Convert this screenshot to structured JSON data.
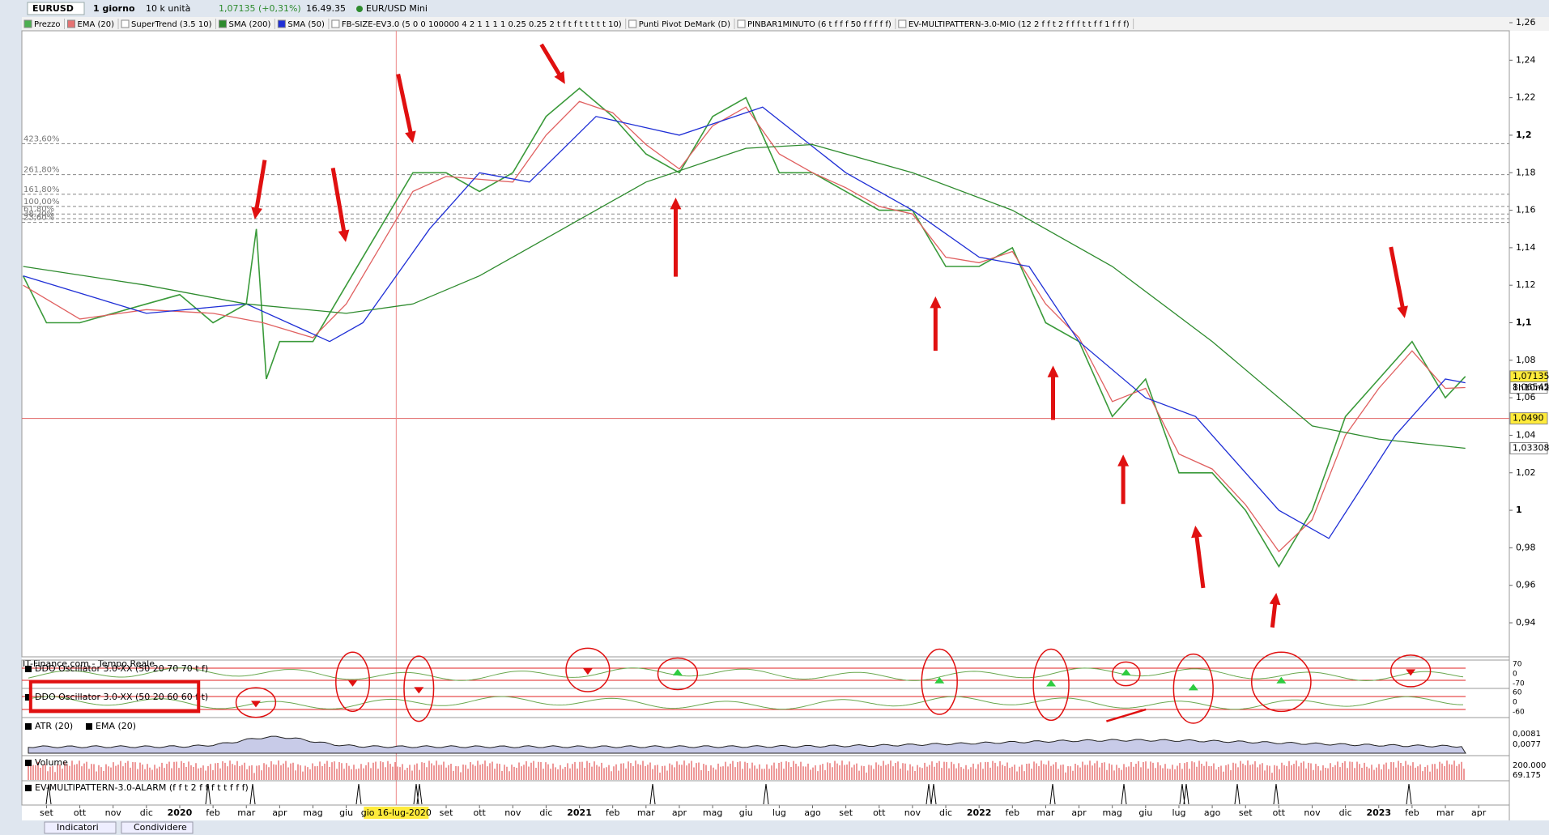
{
  "header": {
    "symbol": "EURUSD",
    "timeframe": "1 giorno",
    "units": "10 k unità",
    "quote": "1,07135 (+0,31%)",
    "time": "16.49.35",
    "instrument": "EUR/USD Mini"
  },
  "legend": [
    {
      "name": "Prezzo",
      "color": "#4caf50"
    },
    {
      "name": "EMA (20)",
      "color": "#e57373"
    },
    {
      "name": "SuperTrend (3.5 10)",
      "color": "#ffffff"
    },
    {
      "name": "SMA (200)",
      "color": "#2e8b2e"
    },
    {
      "name": "SMA (50)",
      "color": "#1f2fd6"
    },
    {
      "name": "FB-SIZE-EV3.0 (5 0 0 100000 4 2 1 1 1 1 0.25 0.25 2 t f t f t t t t t 10)",
      "color": "#ffffff"
    },
    {
      "name": "Punti Pivot DeMark (D)",
      "color": "#ffffff"
    },
    {
      "name": "PINBAR1MINUTO (6 t f f f 50 f f f f f)",
      "color": "#ffffff"
    },
    {
      "name": "EV-MULTIPATTERN-3.0-MIO (12 2 f f t 2 f f f t t f f 1 f f f)",
      "color": "#ffffff"
    }
  ],
  "chart_data": {
    "type": "line",
    "xlim": [
      -0.74,
      43.92
    ],
    "ylim": [
      0.92,
      1.26
    ],
    "yticks": [
      {
        "value": 0.94,
        "label": "0,94"
      },
      {
        "value": 0.96,
        "label": "0,96"
      },
      {
        "value": 0.98,
        "label": "0,98"
      },
      1,
      {
        "value": 1.02,
        "label": "1,02"
      },
      {
        "value": 1.04,
        "label": "1,04"
      },
      {
        "value": 1.06,
        "label": "1,06"
      },
      {
        "value": 1.08,
        "label": "1,08"
      },
      {
        "value": 1.1,
        "label": "1,1"
      },
      {
        "value": 1.12,
        "label": "1,12"
      },
      {
        "value": 1.14,
        "label": "1,14"
      },
      {
        "value": 1.16,
        "label": "1,16"
      },
      {
        "value": 1.18,
        "label": "1,18"
      },
      {
        "value": 1.2,
        "label": "1,2"
      },
      {
        "value": 1.22,
        "label": "1,22"
      },
      {
        "value": 1.24,
        "label": "1,24"
      },
      {
        "value": 1.26,
        "label": "1,26"
      }
    ],
    "xticks": [
      {
        "value": 0,
        "label": "set"
      },
      {
        "value": 1,
        "label": "ott"
      },
      {
        "value": 2,
        "label": "nov"
      },
      {
        "value": 3,
        "label": "dic"
      },
      {
        "value": 4,
        "label": "2020"
      },
      {
        "value": 5,
        "label": "feb"
      },
      {
        "value": 6,
        "label": "mar"
      },
      {
        "value": 7,
        "label": "apr"
      },
      {
        "value": 8,
        "label": "mag"
      },
      {
        "value": 9,
        "label": "giu"
      },
      {
        "value": 12,
        "label": "set"
      },
      {
        "value": 13,
        "label": "ott"
      },
      {
        "value": 14,
        "label": "nov"
      },
      {
        "value": 15,
        "label": "dic"
      },
      {
        "value": 16,
        "label": "2021"
      },
      {
        "value": 17,
        "label": "feb"
      },
      {
        "value": 18,
        "label": "mar"
      },
      {
        "value": 19,
        "label": "apr"
      },
      {
        "value": 20,
        "label": "mag"
      },
      {
        "value": 21,
        "label": "giu"
      },
      {
        "value": 22,
        "label": "lug"
      },
      {
        "value": 23,
        "label": "ago"
      },
      {
        "value": 24,
        "label": "set"
      },
      {
        "value": 25,
        "label": "ott"
      },
      {
        "value": 26,
        "label": "nov"
      },
      {
        "value": 27,
        "label": "dic"
      },
      {
        "value": 28,
        "label": "2022"
      },
      {
        "value": 29,
        "label": "feb"
      },
      {
        "value": 30,
        "label": "mar"
      },
      {
        "value": 31,
        "label": "apr"
      },
      {
        "value": 32,
        "label": "mag"
      },
      {
        "value": 33,
        "label": "giu"
      },
      {
        "value": 34,
        "label": "lug"
      },
      {
        "value": 35,
        "label": "ago"
      },
      {
        "value": 36,
        "label": "set"
      },
      {
        "value": 37,
        "label": "ott"
      },
      {
        "value": 38,
        "label": "nov"
      },
      {
        "value": 39,
        "label": "dic"
      },
      {
        "value": 40,
        "label": "2023"
      },
      {
        "value": 41,
        "label": "feb"
      },
      {
        "value": 42,
        "label": "mar"
      },
      {
        "value": 43,
        "label": "apr"
      }
    ],
    "series": [
      {
        "name": "Prezzo",
        "color": "#3a9a3a",
        "x": [
          -0.7,
          0,
          1,
          2,
          3,
          4,
          5,
          6,
          6.3,
          6.6,
          7,
          8,
          9,
          10,
          11,
          12,
          13,
          14,
          15,
          16,
          17,
          18,
          19,
          20,
          21,
          22,
          23,
          24,
          25,
          26,
          27,
          28,
          29,
          30,
          31,
          32,
          33,
          34,
          35,
          36,
          37,
          38,
          39,
          40,
          41,
          42,
          42.6
        ],
        "values": [
          1.125,
          1.1,
          1.1,
          1.105,
          1.11,
          1.115,
          1.1,
          1.11,
          1.15,
          1.07,
          1.09,
          1.09,
          1.12,
          1.15,
          1.18,
          1.18,
          1.17,
          1.18,
          1.21,
          1.225,
          1.21,
          1.19,
          1.18,
          1.21,
          1.22,
          1.18,
          1.18,
          1.17,
          1.16,
          1.16,
          1.13,
          1.13,
          1.14,
          1.1,
          1.09,
          1.05,
          1.07,
          1.02,
          1.02,
          1.0,
          0.97,
          1.0,
          1.05,
          1.07,
          1.09,
          1.06,
          1.07135
        ]
      },
      {
        "name": "EMA (20)",
        "color": "#e06060",
        "x": [
          -0.7,
          1,
          3,
          5,
          6.5,
          8,
          9,
          10,
          11,
          12,
          14,
          15,
          16,
          17,
          18,
          19,
          20,
          21,
          22,
          23,
          24,
          25,
          26,
          27,
          28,
          29,
          30,
          31,
          32,
          33,
          34,
          35,
          36,
          37,
          38,
          39,
          40,
          41,
          42,
          42.6
        ],
        "values": [
          1.12,
          1.102,
          1.107,
          1.105,
          1.1,
          1.092,
          1.11,
          1.14,
          1.17,
          1.178,
          1.175,
          1.2,
          1.218,
          1.212,
          1.195,
          1.182,
          1.205,
          1.215,
          1.19,
          1.18,
          1.172,
          1.162,
          1.158,
          1.135,
          1.132,
          1.138,
          1.11,
          1.092,
          1.058,
          1.065,
          1.03,
          1.022,
          1.003,
          0.978,
          0.995,
          1.04,
          1.065,
          1.085,
          1.065,
          1.06545
        ]
      },
      {
        "name": "SMA (50)",
        "color": "#1f2fd6",
        "x": [
          -0.7,
          3,
          6,
          8.5,
          9.5,
          11.5,
          13,
          14.5,
          16.5,
          19,
          21.5,
          24,
          26,
          28,
          29.5,
          31,
          33,
          34.5,
          37,
          38.5,
          40.5,
          42,
          42.6
        ],
        "values": [
          1.125,
          1.105,
          1.11,
          1.09,
          1.1,
          1.15,
          1.18,
          1.175,
          1.21,
          1.2,
          1.215,
          1.18,
          1.16,
          1.135,
          1.13,
          1.09,
          1.06,
          1.05,
          1.0,
          0.985,
          1.04,
          1.07,
          1.068
        ]
      },
      {
        "name": "SMA (200)",
        "color": "#2e8b2e",
        "x": [
          -0.7,
          3,
          6,
          9,
          11,
          13,
          15,
          18,
          21,
          23,
          26,
          29,
          32,
          35,
          38,
          40,
          42.6
        ],
        "values": [
          1.13,
          1.12,
          1.11,
          1.105,
          1.11,
          1.125,
          1.145,
          1.175,
          1.193,
          1.195,
          1.18,
          1.16,
          1.13,
          1.09,
          1.045,
          1.038,
          1.03308
        ]
      }
    ],
    "hline": {
      "value": 1.049,
      "color": "#e06060"
    },
    "fib_levels": [
      {
        "label": "423,60%",
        "price": 1.1955
      },
      {
        "label": "261,80%",
        "price": 1.179
      },
      {
        "label": "161,80%",
        "price": 1.1685
      },
      {
        "label": "100,00%",
        "price": 1.162
      },
      {
        "label": "61,80%",
        "price": 1.158
      },
      {
        "label": "38,20%",
        "price": 1.1555
      },
      {
        "label": "23,60%",
        "price": 1.1535
      }
    ],
    "price_tags": [
      {
        "value": 1.07135,
        "label": "1,07135",
        "bg": "#ffeb3b"
      },
      {
        "value": 1.06545,
        "label": "1,06545",
        "bg": "#ffffff"
      },
      {
        "value": 1.049,
        "label": "1,0490",
        "bg": "#ffeb3b"
      },
      {
        "value": 1.03308,
        "label": "1,03308",
        "bg": "#ffffff"
      }
    ],
    "countdown": "8h10m2",
    "crosshair": {
      "x": 10.5,
      "label": "gio 16-lug-2020"
    }
  },
  "panels": {
    "source": "IT-Finance.com - Tempo Reale",
    "ddo1": {
      "label": "DDO Oscillator 3.0-XX (50 20 70 70 t f)",
      "axis": [
        "70",
        "0",
        "-70"
      ]
    },
    "ddo2": {
      "label": "DDO Oscillator 3.0-XX (50 20 60 60 f t)",
      "axis": [
        "60",
        "0",
        "-60"
      ]
    },
    "atr": {
      "labels": [
        "ATR (20)",
        "EMA (20)"
      ],
      "axis": [
        "0,0081",
        "0,0077"
      ]
    },
    "volume": {
      "label": "Volume",
      "axis": [
        "200.000",
        "69.175"
      ]
    },
    "alarm": {
      "label": "EV-MULTIPATTERN-3.0-ALARM (f f t 2 f f f t t f f f)"
    }
  },
  "footer": {
    "buttons": [
      "Indicatori",
      "Condividere"
    ]
  }
}
